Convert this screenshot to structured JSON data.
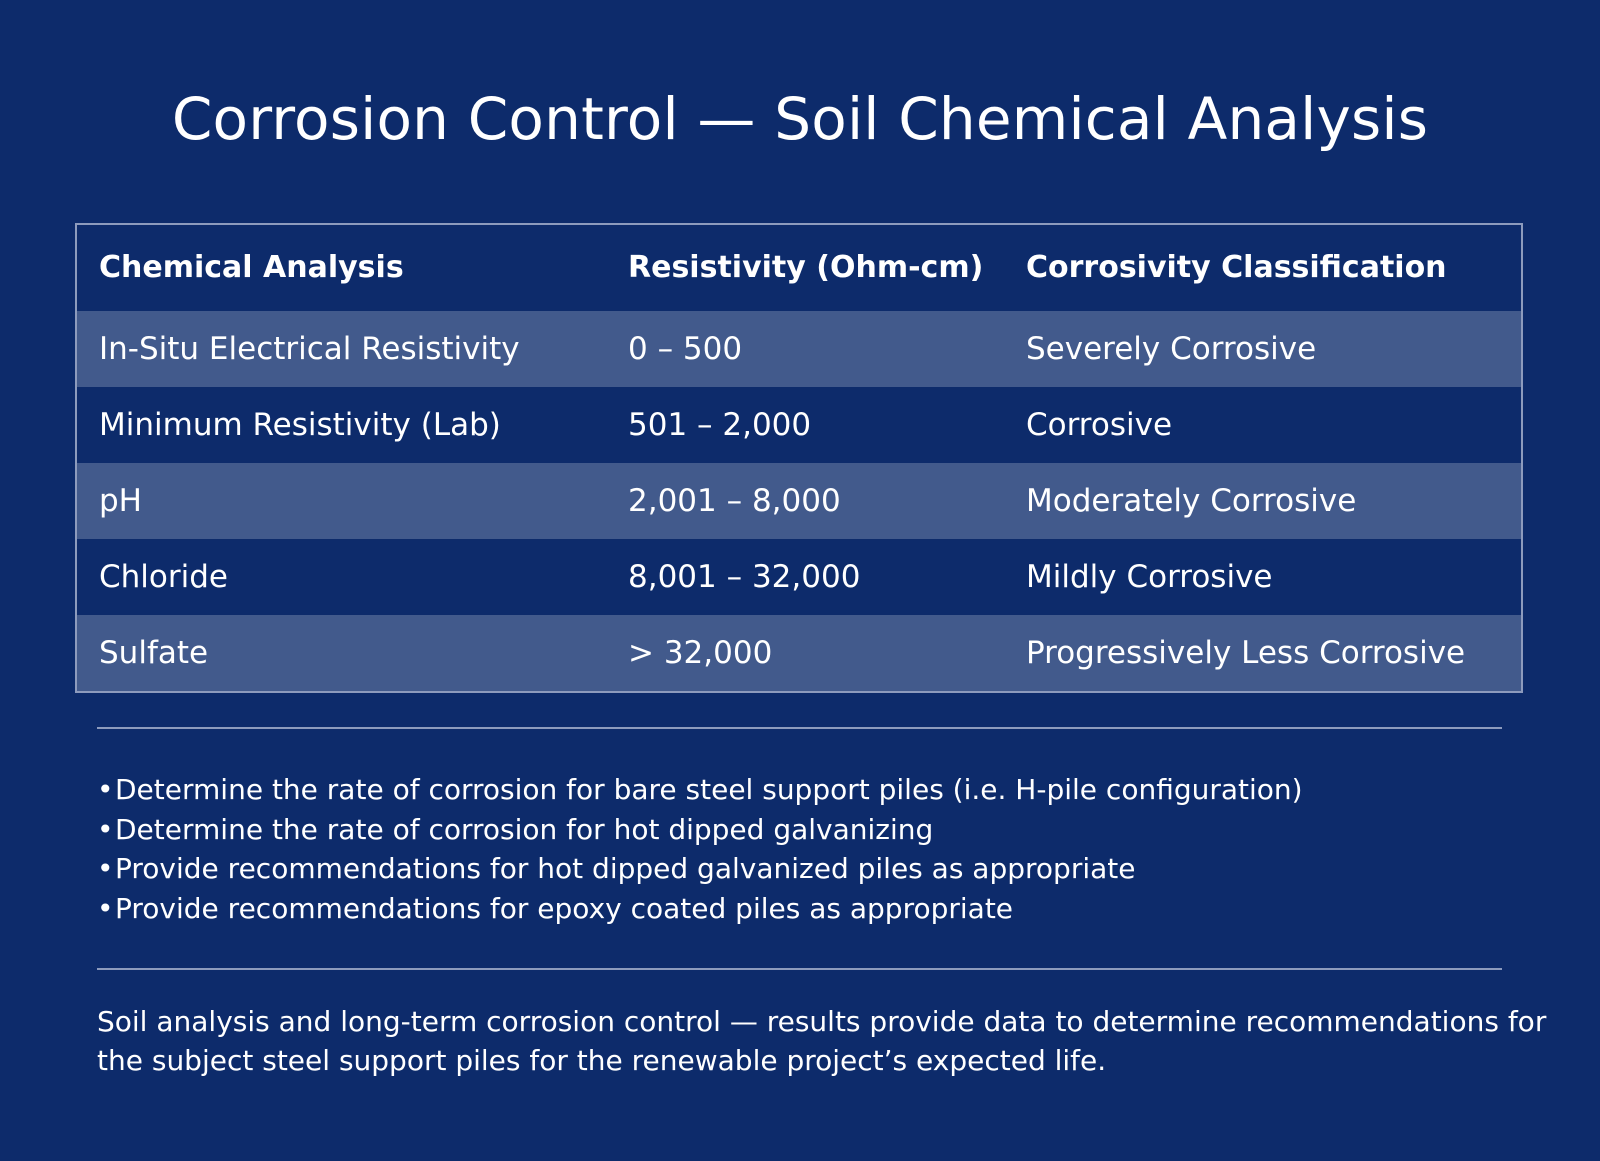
{
  "title": "Corrosion Control — Soil Chemical Analysis",
  "table": {
    "headers": [
      "Chemical Analysis",
      "Resistivity (Ohm-cm)",
      "Corrosivity Classification"
    ],
    "rows": [
      [
        "In-Situ Electrical Resistivity",
        "0 – 500",
        "Severely Corrosive"
      ],
      [
        "Minimum Resistivity (Lab)",
        "501 – 2,000",
        "Corrosive"
      ],
      [
        "pH",
        "2,001 – 8,000",
        "Moderately Corrosive"
      ],
      [
        "Chloride",
        "8,001 – 32,000",
        "Mildly Corrosive"
      ],
      [
        "Sulfate",
        "> 32,000",
        "Progressively Less Corrosive"
      ]
    ]
  },
  "bullets": [
    "Determine the rate of corrosion for bare steel support piles (i.e. H-pile configuration)",
    "Determine the rate of corrosion for hot dipped galvanizing",
    "Provide recommendations for hot dipped galvanized piles as appropriate",
    "Provide recommendations for epoxy coated piles as appropriate"
  ],
  "bullet_marker": "•",
  "footnote": "Soil analysis and long-term corrosion control — results provide data to determine recommendations for the subject steel support piles for the renewable project’s expected life.",
  "colors": {
    "background": "#0d2b6b",
    "row_alt": "#425a8c",
    "border": "#8d9bbd",
    "text": "#ffffff"
  }
}
